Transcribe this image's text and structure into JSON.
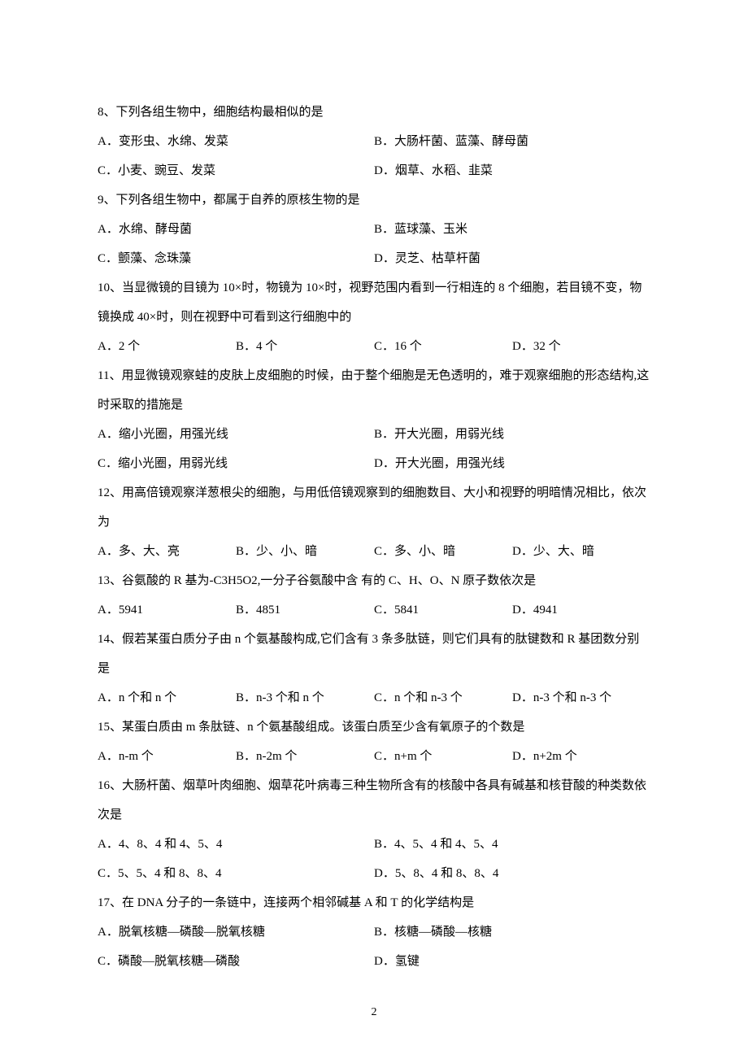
{
  "page_number": "2",
  "questions": [
    {
      "num": "8",
      "stem": "8、下列各组生物中，细胞结构最相似的是",
      "layout": "half",
      "options": [
        "A．变形虫、水绵、发菜",
        "B．大肠杆菌、蓝藻、酵母菌",
        "C．小麦、豌豆、发菜",
        "D．烟草、水稻、韭菜"
      ]
    },
    {
      "num": "9",
      "stem": "9、下列各组生物中，都属于自养的原核生物的是",
      "layout": "half",
      "options": [
        "A．水绵、酵母菌",
        "B．蓝球藻、玉米",
        "C．颤藻、念珠藻",
        "D．灵芝、枯草杆菌"
      ]
    },
    {
      "num": "10",
      "stem": "10、当显微镜的目镜为 10×时，物镜为 10×时，视野范围内看到一行相连的 8 个细胞，若目镜不变，物镜换成 40×时，则在视野中可看到这行细胞中的",
      "layout": "quarter",
      "options": [
        "A．2 个",
        "B．4 个",
        "C．16 个",
        "D．32 个"
      ]
    },
    {
      "num": "11",
      "stem": "11、用显微镜观察蛙的皮肤上皮细胞的时候，由于整个细胞是无色透明的，难于观察细胞的形态结构,这时采取的措施是",
      "layout": "half",
      "options": [
        "A．缩小光圈，用强光线",
        "B．开大光圈，用弱光线",
        "C．缩小光圈，用弱光线",
        "D．开大光圈，用强光线"
      ]
    },
    {
      "num": "12",
      "stem": "12、用高倍镜观察洋葱根尖的细胞，与用低倍镜观察到的细胞数目、大小和视野的明暗情况相比，依次为",
      "layout": "quarter",
      "options": [
        "A．多、大、亮",
        "B．少、小、暗",
        "C．多、小、暗",
        "D．少、大、暗"
      ]
    },
    {
      "num": "13",
      "stem": "13、谷氨酸的 R 基为-C3H5O2,一分子谷氨酸中含 有的 C、H、O、N 原子数依次是",
      "layout": "quarter",
      "options": [
        "A．5941",
        "B．4851",
        "C．5841",
        "D．4941"
      ]
    },
    {
      "num": "14",
      "stem": "14、假若某蛋白质分子由 n 个氨基酸构成,它们含有 3 条多肽链，则它们具有的肽键数和 R 基团数分别是",
      "layout": "quarter",
      "options": [
        "A．n 个和 n 个",
        "B．n-3 个和 n 个",
        "C．n 个和 n-3 个",
        "D．n-3 个和 n-3 个"
      ]
    },
    {
      "num": "15",
      "stem": "15、某蛋白质由 m 条肽链、n 个氨基酸组成。该蛋白质至少含有氧原子的个数是",
      "layout": "quarter",
      "options": [
        "A．n-m 个",
        "B．n-2m 个",
        "C．n+m 个",
        "D．n+2m 个"
      ]
    },
    {
      "num": "16",
      "stem": "16、大肠杆菌、烟草叶肉细胞、烟草花叶病毒三种生物所含有的核酸中各具有碱基和核苷酸的种类数依次是",
      "layout": "half",
      "options": [
        "A．4、8、4 和 4、5、4",
        "B．4、5、4 和 4、5、4",
        "C．5、5、4 和 8、8、4",
        "D．5、8、4 和 8、8、4"
      ]
    },
    {
      "num": "17",
      "stem": "17、在 DNA 分子的一条链中，连接两个相邻碱基 A 和 T 的化学结构是",
      "layout": "half",
      "options": [
        "A．脱氧核糖—磷酸—脱氧核糖",
        "B．核糖—磷酸—核糖",
        "C．磷酸—脱氧核糖—磷酸",
        "D．氢键"
      ]
    }
  ]
}
